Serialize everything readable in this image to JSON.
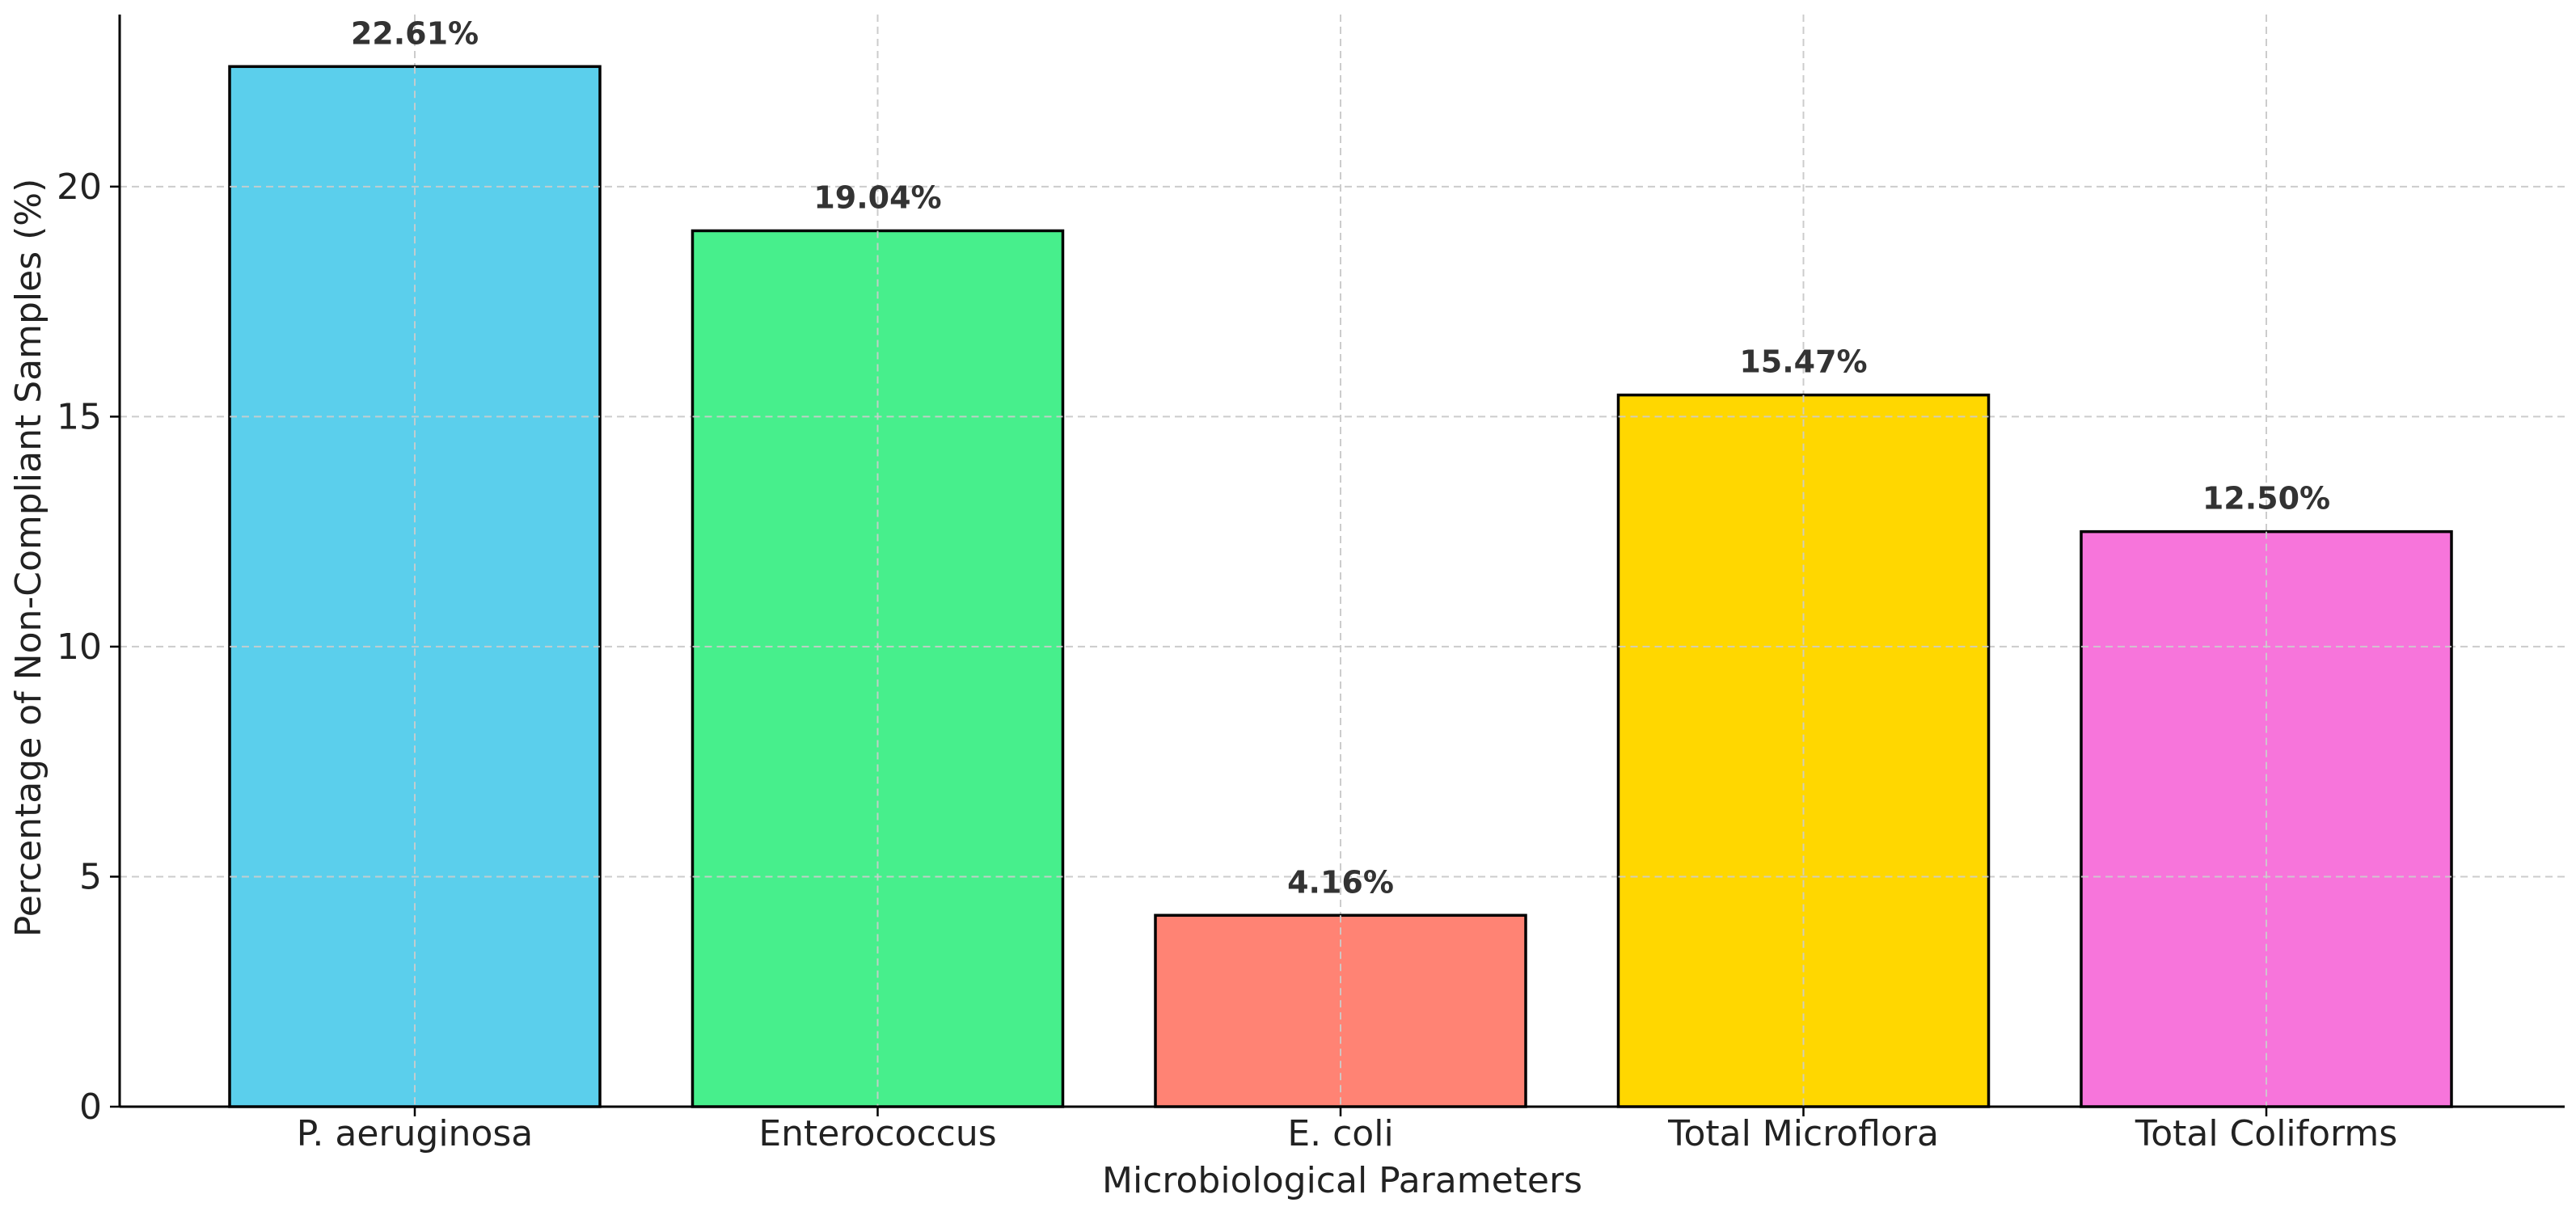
{
  "chart_data": {
    "type": "bar",
    "categories": [
      "P. aeruginosa",
      "Enterococcus",
      "E. coli",
      "Total Microflora",
      "Total Coliforms"
    ],
    "values": [
      22.61,
      19.04,
      4.16,
      15.47,
      12.5
    ],
    "data_labels": [
      "22.61%",
      "19.04%",
      "4.16%",
      "15.47%",
      "12.50%"
    ],
    "colors": [
      "#5BCFEC",
      "#47EF8C",
      "#FF8374",
      "#FFD700",
      "#F775DB"
    ],
    "title": "",
    "xlabel": "Microbiological Parameters",
    "ylabel": "Percentage of Non-Compliant Samples (%)",
    "ylim": [
      0,
      23.74
    ],
    "yticks": [
      0,
      5,
      10,
      15,
      20
    ],
    "ytick_labels": [
      "0",
      "5",
      "10",
      "15",
      "20"
    ],
    "grid": true,
    "bar_edge_color": "#000000",
    "grid_color": "#cccccc"
  }
}
